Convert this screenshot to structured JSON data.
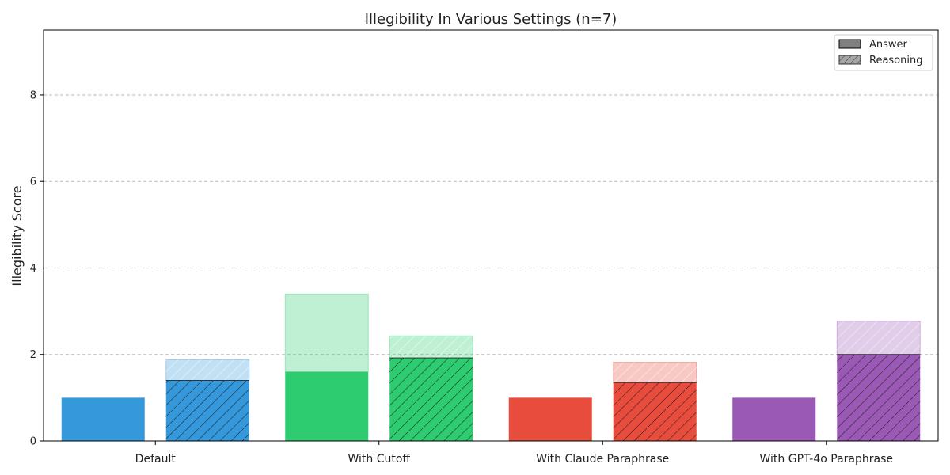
{
  "chart_data": {
    "type": "bar",
    "title": "Illegibility In Various Settings (n=7)",
    "xlabel": "",
    "ylabel": "Illegibility Score",
    "ylim": [
      0,
      9.5
    ],
    "yticks": [
      0,
      2,
      4,
      6,
      8
    ],
    "grid": true,
    "legend_position": "top-right",
    "categories": [
      "Default",
      "With Cutoff",
      "With Claude Paraphrase",
      "With GPT-4o Paraphrase"
    ],
    "colors": [
      "#3498db",
      "#2ecc71",
      "#e74c3c",
      "#9b59b6"
    ],
    "series": [
      {
        "name": "Answer",
        "pattern": "solid",
        "mean": [
          1.0,
          1.6,
          1.0,
          1.0
        ],
        "upper": [
          1.0,
          3.4,
          1.0,
          1.0
        ]
      },
      {
        "name": "Reasoning",
        "pattern": "hatched",
        "mean": [
          1.4,
          1.92,
          1.35,
          2.0
        ],
        "upper": [
          1.88,
          2.43,
          1.82,
          2.77
        ]
      }
    ],
    "legend": [
      {
        "label": "Answer",
        "pattern": "solid"
      },
      {
        "label": "Reasoning",
        "pattern": "hatched"
      }
    ]
  }
}
